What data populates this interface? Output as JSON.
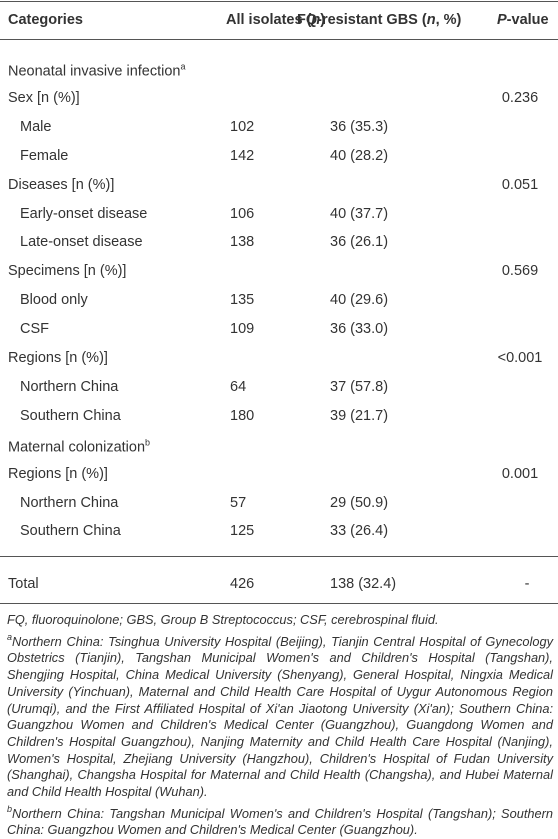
{
  "header": {
    "categories": "Categories",
    "all_isolates": [
      "All isolates (",
      "n",
      ")"
    ],
    "fq_resistant": [
      "FQ-resistant GBS (",
      "n",
      ", %)"
    ],
    "p_value": [
      "P",
      "-value"
    ]
  },
  "sections": [
    {
      "title": "Neonatal invasive infection",
      "sup": "a",
      "groups": [
        {
          "label": "Sex [n (%)]",
          "p": "0.236",
          "rows": [
            {
              "label": "Male",
              "all": 102,
              "fq": "36 (35.3)"
            },
            {
              "label": "Female",
              "all": 142,
              "fq": "40 (28.2)"
            }
          ]
        },
        {
          "label": "Diseases [n (%)]",
          "p": "0.051",
          "rows": [
            {
              "label": "Early-onset disease",
              "all": 106,
              "fq": "40 (37.7)"
            },
            {
              "label": "Late-onset disease",
              "all": 138,
              "fq": "36 (26.1)"
            }
          ]
        },
        {
          "label": "Specimens [n (%)]",
          "p": "0.569",
          "rows": [
            {
              "label": "Blood only",
              "all": 135,
              "fq": "40 (29.6)"
            },
            {
              "label": "CSF",
              "all": 109,
              "fq": "36 (33.0)"
            }
          ]
        },
        {
          "label": "Regions [n (%)]",
          "p": "<0.001",
          "rows": [
            {
              "label": "Northern China",
              "all": 64,
              "fq": "37 (57.8)"
            },
            {
              "label": "Southern China",
              "all": 180,
              "fq": "39 (21.7)"
            }
          ]
        }
      ]
    },
    {
      "title": "Maternal colonization",
      "sup": "b",
      "groups": [
        {
          "label": "Regions [n (%)]",
          "p": "0.001",
          "rows": [
            {
              "label": "Northern China",
              "all": 57,
              "fq": "29 (50.9)"
            },
            {
              "label": "Southern China",
              "all": 125,
              "fq": "33 (26.4)"
            }
          ]
        }
      ]
    }
  ],
  "total": {
    "label": "Total",
    "all": 426,
    "fq": "138 (32.4)",
    "p": "-"
  },
  "footnotes": {
    "abbrev": "FQ, fluoroquinolone; GBS, Group B Streptococcus; CSF, cerebrospinal fluid.",
    "a": {
      "mark": "a",
      "text": "Northern China: Tsinghua University Hospital (Beijing), Tianjin Central Hospital of Gynecology Obstetrics (Tianjin), Tangshan Municipal Women's and Children's Hospital (Tangshan), Shengjing Hospital, China Medical University (Shenyang), General Hospital, Ningxia Medical University (Yinchuan), Maternal and Child Health Care Hospital of Uygur Autonomous Region (Urumqi), and the First Affiliated Hospital of Xi'an Jiaotong University (Xi'an); Southern China: Guangzhou Women and Children's Medical Center (Guangzhou), Guangdong Women and Children's Hospital Guangzhou), Nanjing Maternity and Child Health Care Hospital (Nanjing), Women's Hospital, Zhejiang University (Hangzhou), Children's Hospital of Fudan University (Shanghai), Changsha Hospital for Maternal and Child Health (Changsha), and Hubei Maternal and Child Health Hospital (Wuhan)."
    },
    "b": {
      "mark": "b",
      "text": "Northern China: Tangshan Municipal Women's and Children's Hospital (Tangshan); Southern China: Guangzhou Women and Children's Medical Center (Guangzhou)."
    }
  }
}
